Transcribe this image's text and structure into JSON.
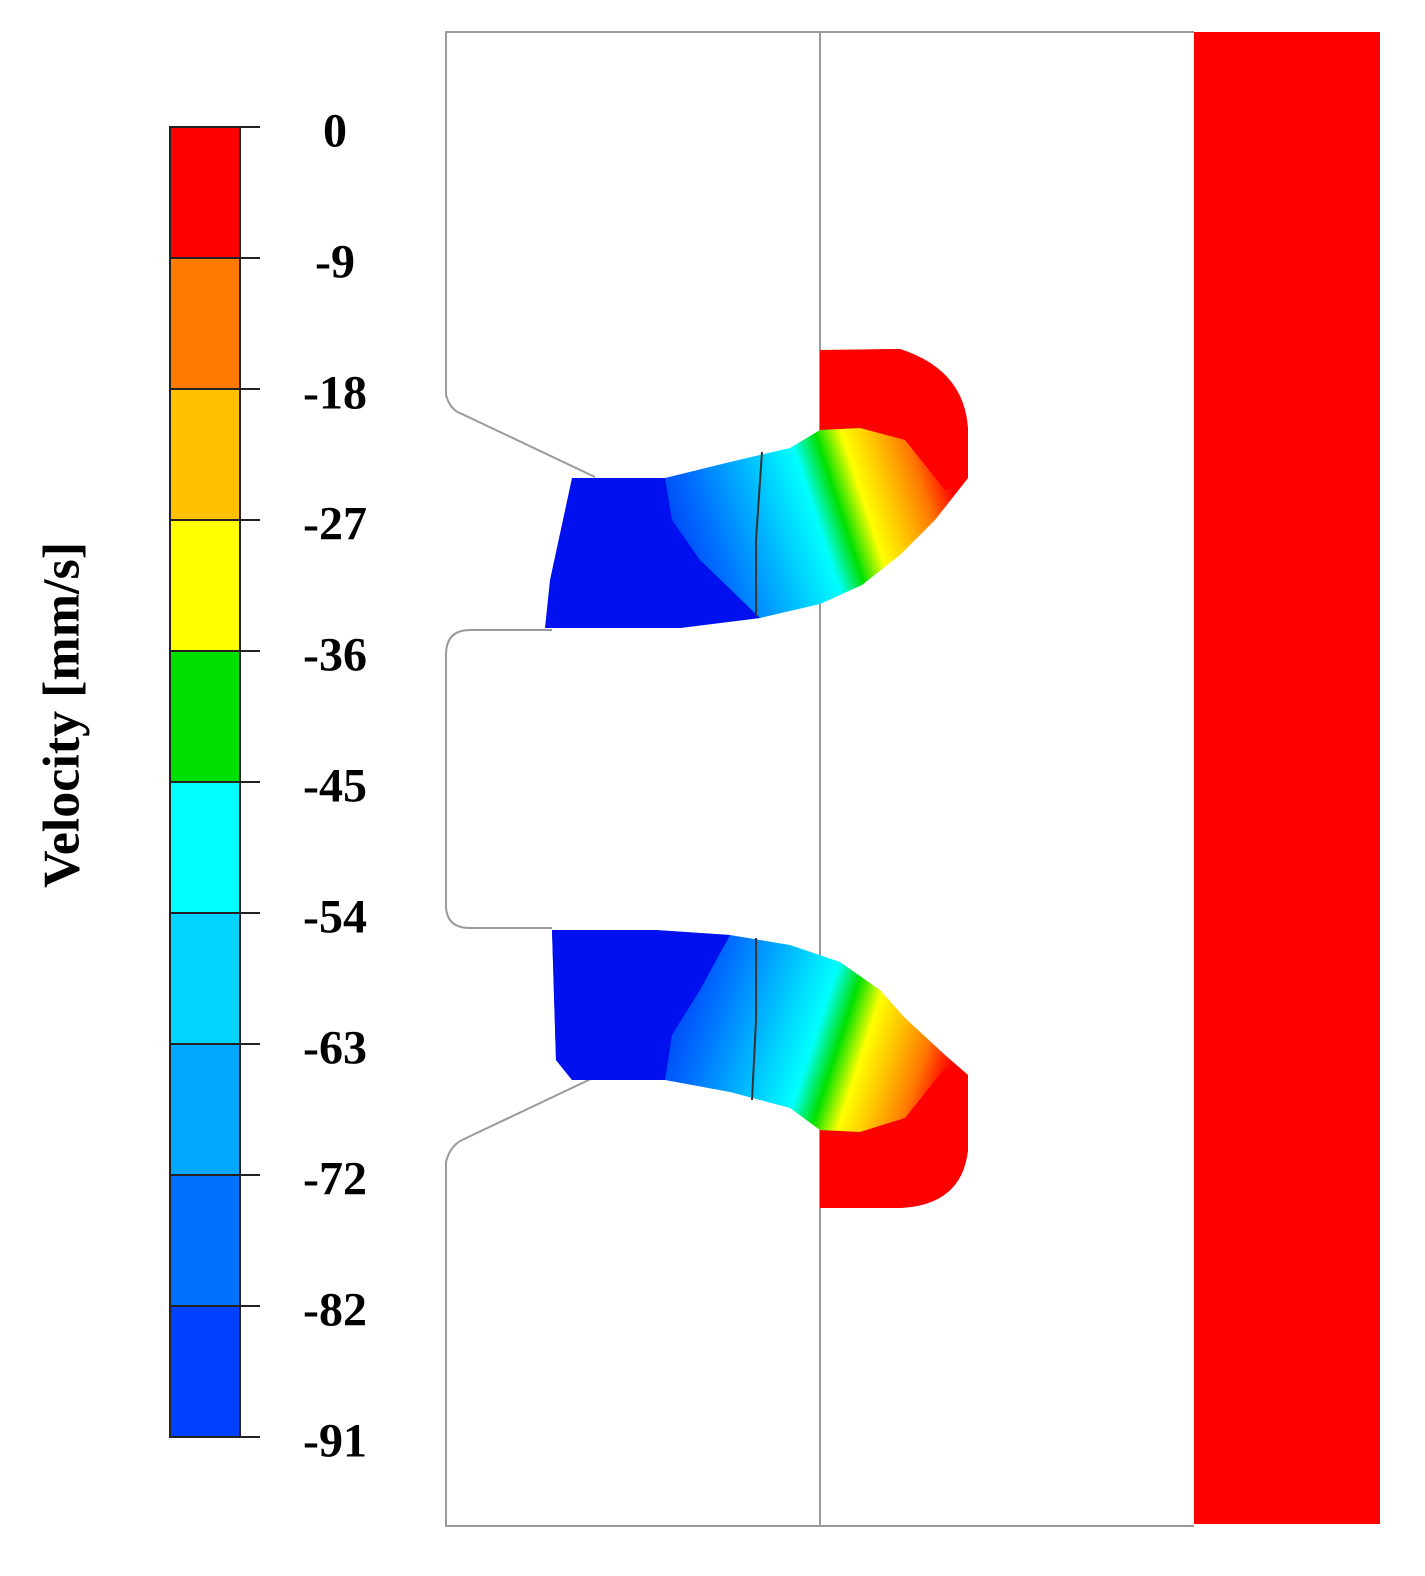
{
  "legend": {
    "title": "Velocity [mm/s]",
    "ticks": [
      "0",
      "-9",
      "-18",
      "-27",
      "-36",
      "-45",
      "-54",
      "-63",
      "-72",
      "-82",
      "-91"
    ],
    "band_colors": [
      "#ff0000",
      "#ff7a00",
      "#ffc000",
      "#ffff00",
      "#00e000",
      "#00ffff",
      "#00d4ff",
      "#00a8ff",
      "#0070ff",
      "#0040ff"
    ]
  },
  "colors": {
    "die": "#ff0000",
    "outline": "#9a9a9a",
    "deep_blue": "#0010ee"
  }
}
